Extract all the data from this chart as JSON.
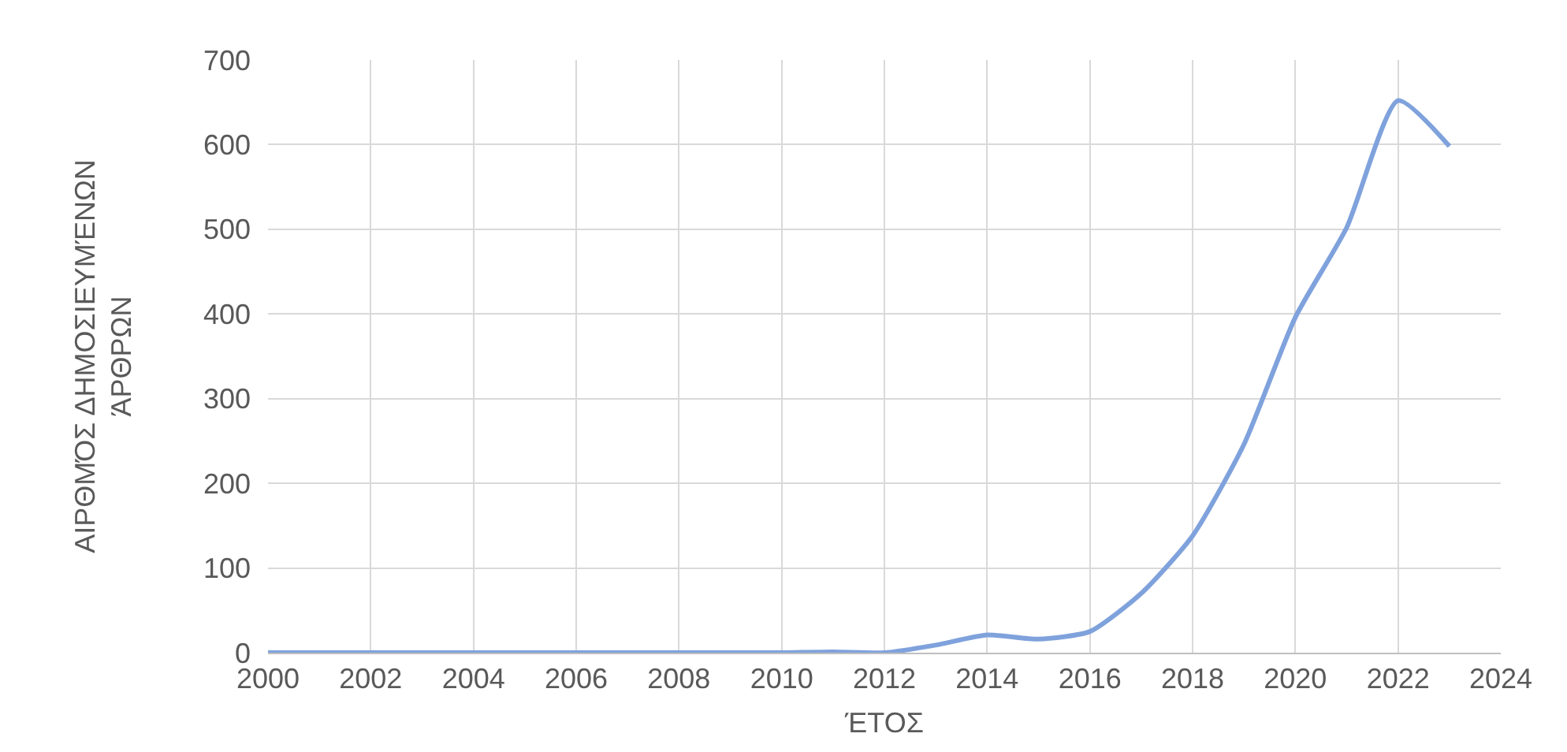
{
  "chart_data": {
    "type": "line",
    "xlabel": "ΈΤΟΣ",
    "ylabel": "ΑΙΡΘΜΌΣ ΔΗΜΟΣΙΕΥΜΈΝΩΝ\nΆΡΘΡΩΝ",
    "x": [
      2000,
      2001,
      2002,
      2003,
      2004,
      2005,
      2006,
      2007,
      2008,
      2009,
      2010,
      2011,
      2012,
      2013,
      2014,
      2015,
      2016,
      2017,
      2018,
      2019,
      2020,
      2021,
      2022,
      2023
    ],
    "series": [
      {
        "color": "#7fa2dc",
        "values": [
          0,
          0,
          0,
          0,
          0,
          0,
          0,
          0,
          0,
          0,
          0,
          1,
          0,
          9,
          21,
          16,
          25,
          70,
          138,
          246,
          396,
          502,
          652,
          598
        ]
      }
    ],
    "xlim": [
      2000,
      2024
    ],
    "xticks": [
      2000,
      2002,
      2004,
      2006,
      2008,
      2010,
      2012,
      2014,
      2016,
      2018,
      2020,
      2022,
      2024
    ],
    "ylim": [
      0,
      700
    ],
    "yticks": [
      0,
      100,
      200,
      300,
      400,
      500,
      600,
      700
    ],
    "grid": true,
    "marker": "none",
    "line_style": "solid"
  }
}
